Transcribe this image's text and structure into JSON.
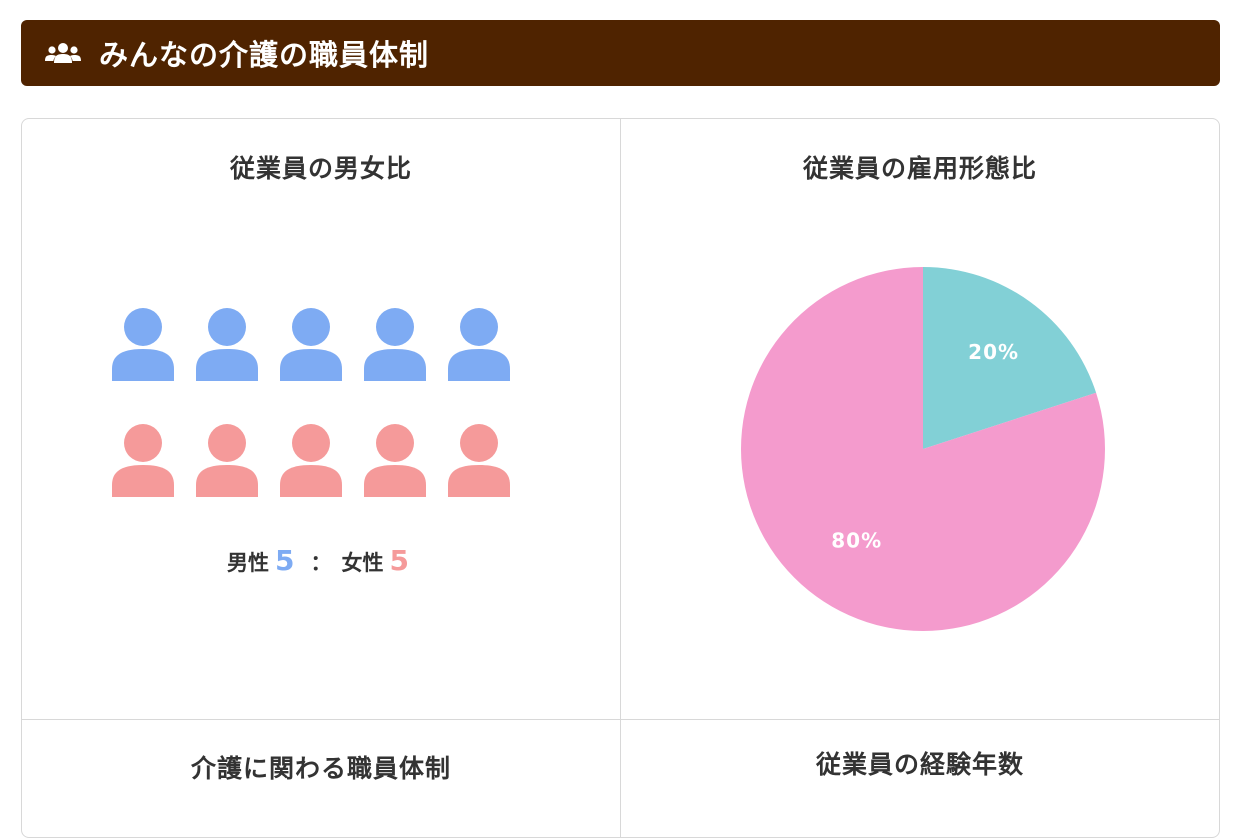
{
  "header": {
    "title": "みんなの介護の職員体制",
    "icon": "users-icon"
  },
  "gender_panel": {
    "title": "従業員の男女比",
    "male_label": "男性",
    "male_count": "5",
    "separator": "：",
    "female_label": "女性",
    "female_count": "5",
    "male_color": "#7eabf3",
    "female_color": "#f59a9a",
    "icon": "person-icon"
  },
  "employment_panel": {
    "title": "従業員の雇用形態比"
  },
  "staff_panel": {
    "title": "介護に関わる職員体制"
  },
  "experience_panel": {
    "title": "従業員の経験年数"
  },
  "chart_data": {
    "type": "pie",
    "slices": [
      {
        "label": "20%",
        "value": 20,
        "color": "#82d0d6"
      },
      {
        "label": "80%",
        "value": 80,
        "color": "#f49bcd"
      }
    ],
    "start_angle_deg": 0,
    "direction": "clockwise"
  }
}
